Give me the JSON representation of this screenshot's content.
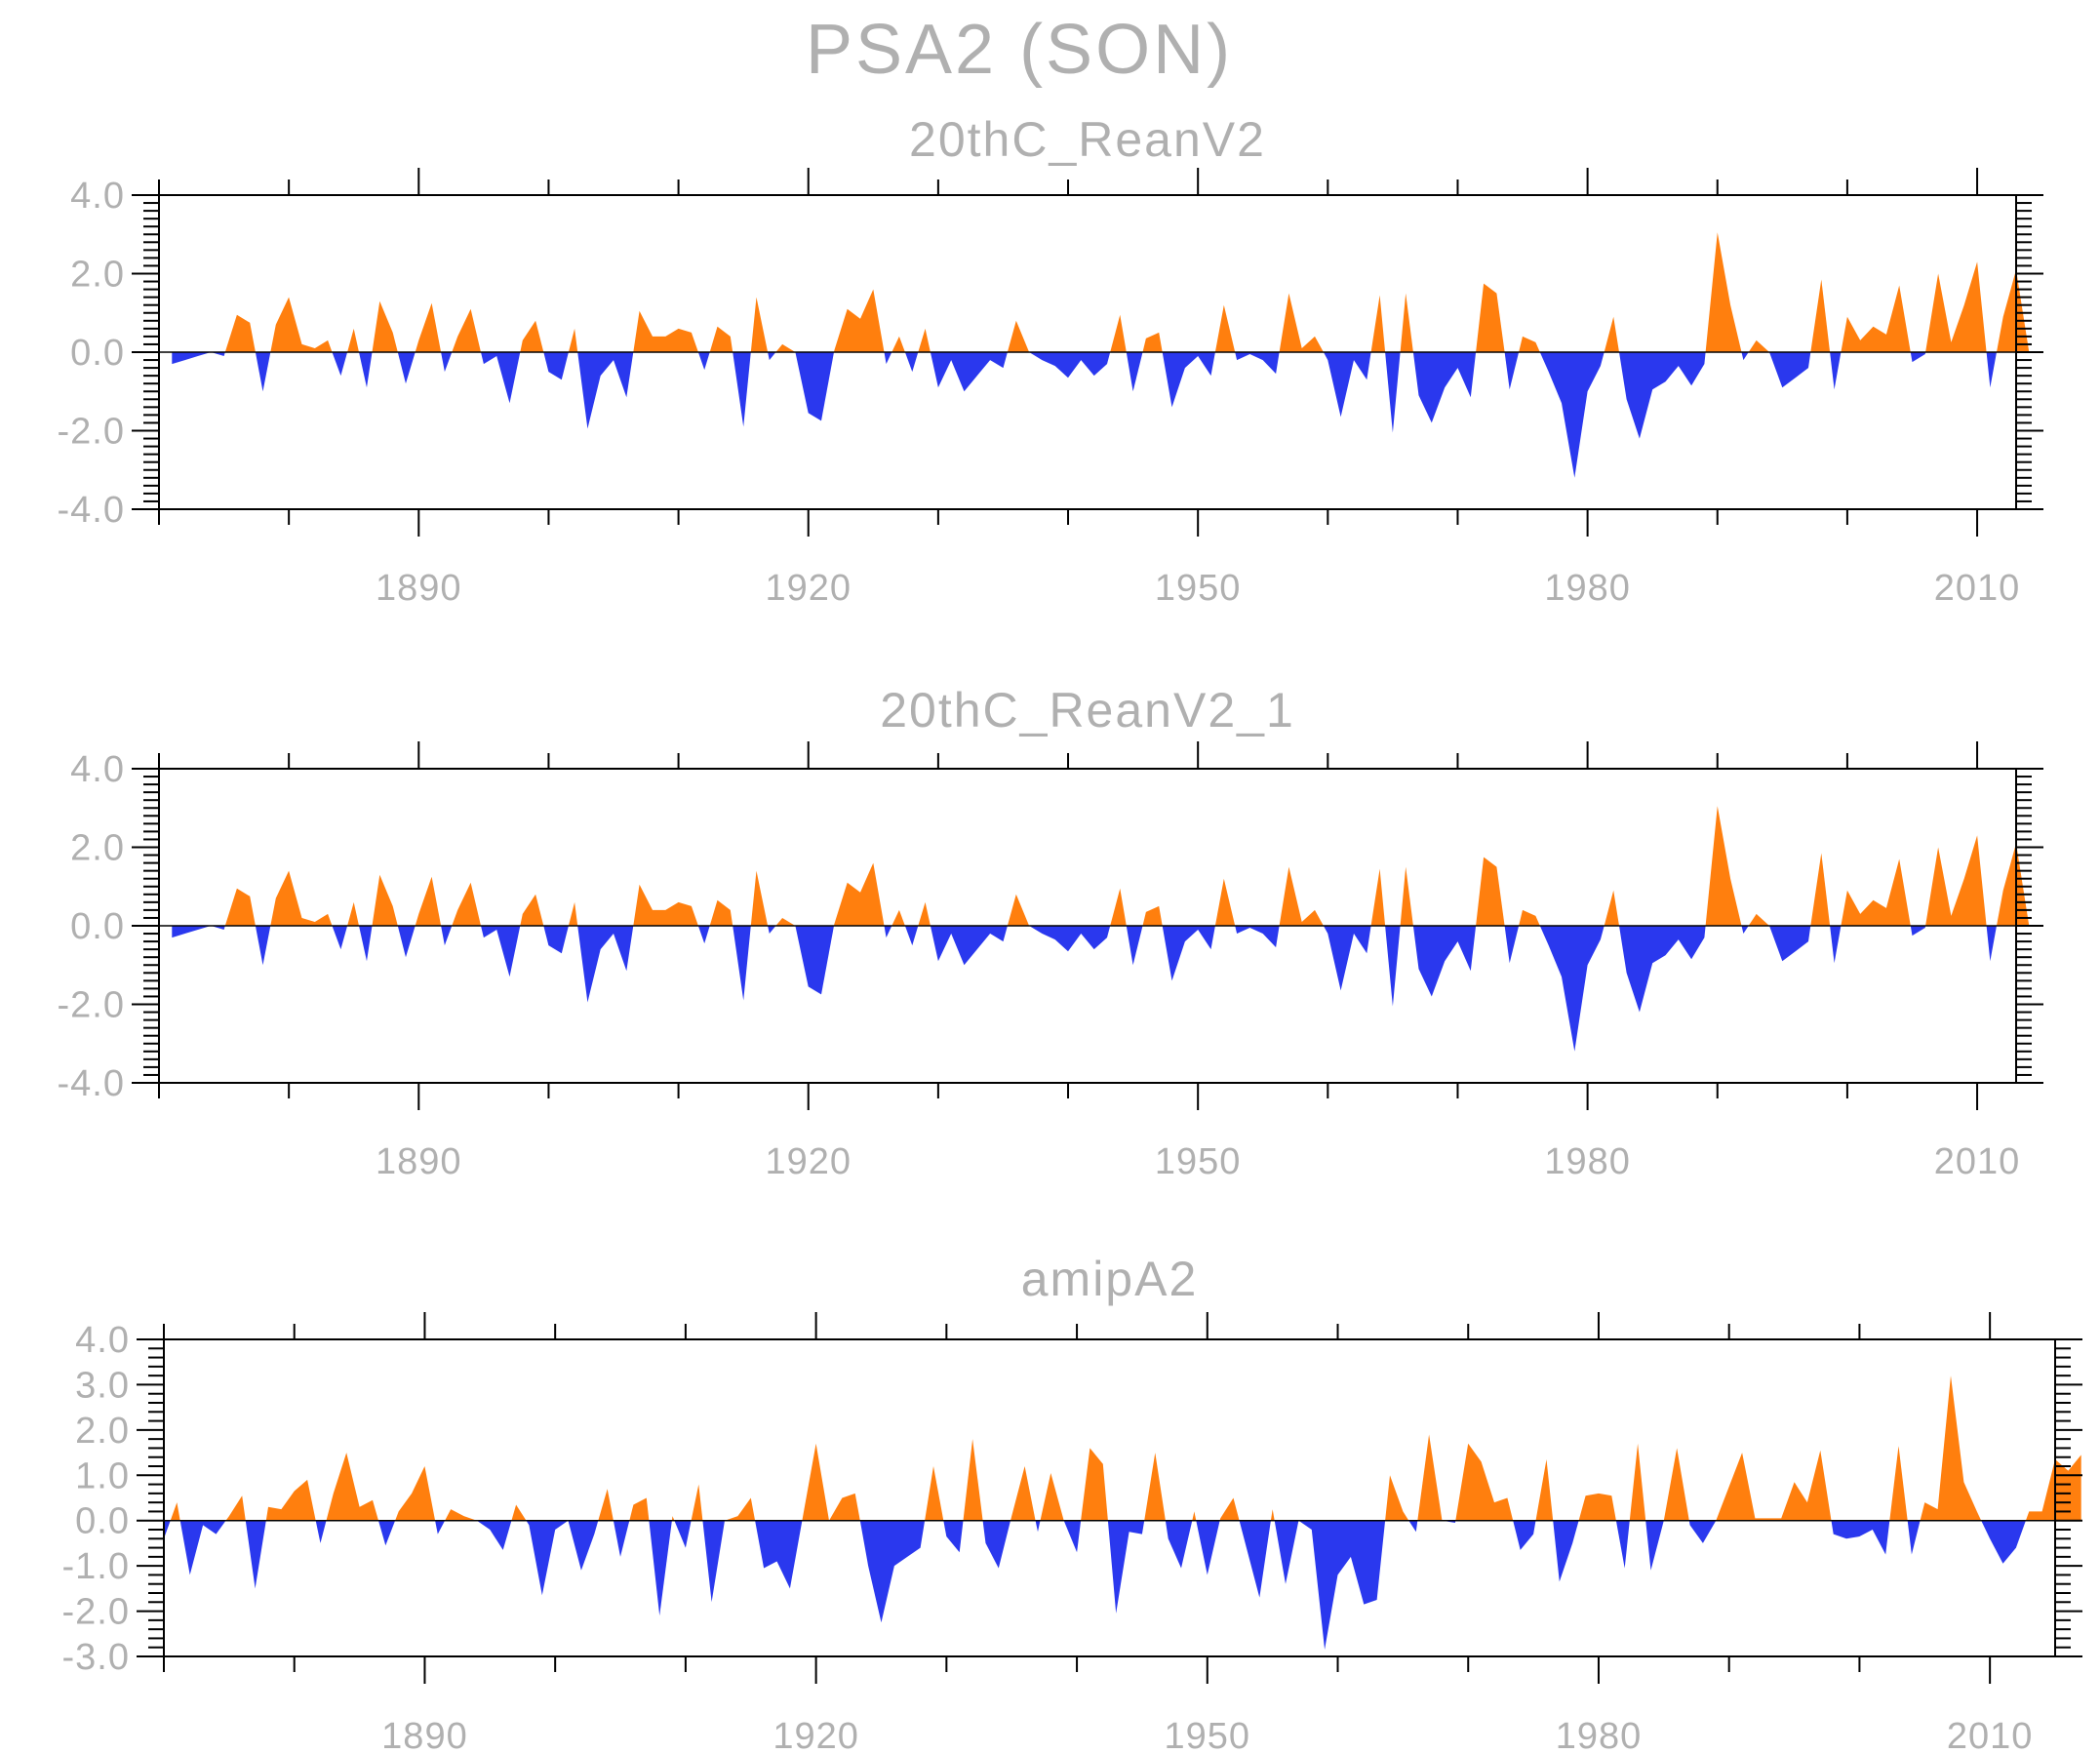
{
  "title": "PSA2 (SON)",
  "colors": {
    "positive": "#ff7f0e",
    "negative": "#2a38ee",
    "frame": "#000000",
    "text": "#b0b0b0"
  },
  "chart_data": [
    {
      "type": "area",
      "title": "20thC_ReanV2",
      "xlim": [
        1870,
        2013
      ],
      "ylim": [
        -4.0,
        4.0
      ],
      "x_ticks": [
        1890,
        1920,
        1950,
        1980,
        2010
      ],
      "x_tick_labels": [
        "1890",
        "1920",
        "1950",
        "1980",
        "2010"
      ],
      "y_ticks": [
        -4.0,
        -2.0,
        0.0,
        2.0,
        4.0
      ],
      "y_tick_labels": [
        "-4.0",
        "-2.0",
        "0.0",
        "2.0",
        "4.0"
      ],
      "x_start": 1871,
      "values": [
        -0.3,
        -0.2,
        -0.1,
        0.0,
        -0.1,
        0.95,
        0.75,
        -1.0,
        0.7,
        1.4,
        0.2,
        0.1,
        0.3,
        -0.6,
        0.6,
        -0.9,
        1.3,
        0.5,
        -0.8,
        0.3,
        1.25,
        -0.5,
        0.4,
        1.1,
        -0.3,
        -0.1,
        -1.3,
        0.3,
        0.8,
        -0.5,
        -0.7,
        0.6,
        -1.95,
        -0.6,
        -0.2,
        -1.15,
        1.05,
        0.4,
        0.4,
        0.6,
        0.5,
        -0.45,
        0.65,
        0.4,
        -1.9,
        1.4,
        -0.2,
        0.2,
        0.0,
        -1.55,
        -1.75,
        0.05,
        1.1,
        0.85,
        1.6,
        -0.3,
        0.4,
        -0.5,
        0.6,
        -0.9,
        -0.2,
        -1.0,
        -0.6,
        -0.2,
        -0.4,
        0.8,
        0.0,
        -0.2,
        -0.35,
        -0.65,
        -0.2,
        -0.6,
        -0.3,
        0.95,
        -1.0,
        0.35,
        0.5,
        -1.4,
        -0.4,
        -0.1,
        -0.6,
        1.2,
        -0.2,
        -0.05,
        -0.2,
        -0.55,
        1.5,
        0.1,
        0.4,
        -0.2,
        -1.65,
        -0.2,
        -0.7,
        1.45,
        -2.05,
        1.5,
        -1.1,
        -1.8,
        -0.9,
        -0.4,
        -1.15,
        1.75,
        1.5,
        -0.95,
        0.4,
        0.25,
        -0.5,
        -1.3,
        -3.2,
        -1.0,
        -0.35,
        0.9,
        -1.2,
        -2.2,
        -0.95,
        -0.75,
        -0.35,
        -0.85,
        -0.3,
        3.05,
        1.2,
        -0.2,
        0.3,
        0.0,
        -0.9,
        -0.65,
        -0.4,
        1.85,
        -0.95,
        0.9,
        0.3,
        0.65,
        0.45,
        1.7,
        -0.25,
        -0.05,
        2.0,
        0.25,
        1.2,
        2.3,
        -0.9,
        0.9,
        2.1,
        0.0
      ]
    },
    {
      "type": "area",
      "title": "20thC_ReanV2_1",
      "xlim": [
        1870,
        2013
      ],
      "ylim": [
        -4.0,
        4.0
      ],
      "x_ticks": [
        1890,
        1920,
        1950,
        1980,
        2010
      ],
      "x_tick_labels": [
        "1890",
        "1920",
        "1950",
        "1980",
        "2010"
      ],
      "y_ticks": [
        -4.0,
        -2.0,
        0.0,
        2.0,
        4.0
      ],
      "y_tick_labels": [
        "-4.0",
        "-2.0",
        "0.0",
        "2.0",
        "4.0"
      ],
      "x_start": 1871,
      "values": [
        -0.3,
        -0.2,
        -0.1,
        0.0,
        -0.1,
        0.95,
        0.75,
        -1.0,
        0.7,
        1.4,
        0.2,
        0.1,
        0.3,
        -0.6,
        0.6,
        -0.9,
        1.3,
        0.5,
        -0.8,
        0.3,
        1.25,
        -0.5,
        0.4,
        1.1,
        -0.3,
        -0.1,
        -1.3,
        0.3,
        0.8,
        -0.5,
        -0.7,
        0.6,
        -1.95,
        -0.6,
        -0.2,
        -1.15,
        1.05,
        0.4,
        0.4,
        0.6,
        0.5,
        -0.45,
        0.65,
        0.4,
        -1.9,
        1.4,
        -0.2,
        0.2,
        0.0,
        -1.55,
        -1.75,
        0.05,
        1.1,
        0.85,
        1.6,
        -0.3,
        0.4,
        -0.5,
        0.6,
        -0.9,
        -0.2,
        -1.0,
        -0.6,
        -0.2,
        -0.4,
        0.8,
        0.0,
        -0.2,
        -0.35,
        -0.65,
        -0.2,
        -0.6,
        -0.3,
        0.95,
        -1.0,
        0.35,
        0.5,
        -1.4,
        -0.4,
        -0.1,
        -0.6,
        1.2,
        -0.2,
        -0.05,
        -0.2,
        -0.55,
        1.5,
        0.1,
        0.4,
        -0.2,
        -1.65,
        -0.2,
        -0.7,
        1.45,
        -2.05,
        1.5,
        -1.1,
        -1.8,
        -0.9,
        -0.4,
        -1.15,
        1.75,
        1.5,
        -0.95,
        0.4,
        0.25,
        -0.5,
        -1.3,
        -3.2,
        -1.0,
        -0.35,
        0.9,
        -1.2,
        -2.2,
        -0.95,
        -0.75,
        -0.35,
        -0.85,
        -0.3,
        3.05,
        1.2,
        -0.2,
        0.3,
        0.0,
        -0.9,
        -0.65,
        -0.4,
        1.85,
        -0.95,
        0.9,
        0.3,
        0.65,
        0.45,
        1.7,
        -0.25,
        -0.05,
        2.0,
        0.25,
        1.2,
        2.3,
        -0.9,
        0.9,
        2.1,
        0.0
      ]
    },
    {
      "type": "area",
      "title": "amipA2",
      "xlim": [
        1870,
        2015
      ],
      "ylim": [
        -3.0,
        4.0
      ],
      "x_ticks": [
        1890,
        1920,
        1950,
        1980,
        2010
      ],
      "x_tick_labels": [
        "1890",
        "1920",
        "1950",
        "1980",
        "2010"
      ],
      "y_ticks": [
        -3.0,
        -2.0,
        -1.0,
        0.0,
        1.0,
        2.0,
        3.0,
        4.0
      ],
      "y_tick_labels": [
        "-3.0",
        "-2.0",
        "-1.0",
        "0.0",
        "1.0",
        "2.0",
        "3.0",
        "4.0"
      ],
      "x_start": 1870,
      "values": [
        -0.4,
        0.4,
        -1.2,
        -0.1,
        -0.3,
        0.1,
        0.55,
        -1.5,
        0.3,
        0.25,
        0.65,
        0.9,
        -0.5,
        0.6,
        1.5,
        0.3,
        0.45,
        -0.55,
        0.2,
        0.6,
        1.2,
        -0.3,
        0.25,
        0.1,
        0.0,
        -0.2,
        -0.65,
        0.35,
        -0.1,
        -1.65,
        -0.2,
        0.0,
        -1.1,
        -0.3,
        0.7,
        -0.8,
        0.35,
        0.5,
        -2.1,
        0.1,
        -0.6,
        0.8,
        -1.8,
        0.0,
        0.1,
        0.5,
        -1.05,
        -0.9,
        -1.5,
        0.1,
        1.7,
        0.0,
        0.5,
        0.6,
        -1.0,
        -2.25,
        -1.0,
        -0.8,
        -0.6,
        1.2,
        -0.35,
        -0.7,
        1.8,
        -0.5,
        -1.05,
        0.1,
        1.2,
        -0.25,
        1.05,
        0.0,
        -0.7,
        1.6,
        1.25,
        -2.05,
        -0.25,
        -0.3,
        1.5,
        -0.4,
        -1.05,
        0.2,
        -1.2,
        0.05,
        0.5,
        -0.6,
        -1.7,
        0.25,
        -1.4,
        0.0,
        -0.2,
        -2.85,
        -1.2,
        -0.8,
        -1.85,
        -1.75,
        1.0,
        0.2,
        -0.25,
        1.9,
        0.0,
        -0.05,
        1.7,
        1.3,
        0.4,
        0.5,
        -0.65,
        -0.3,
        1.35,
        -1.35,
        -0.5,
        0.55,
        0.6,
        0.55,
        -1.05,
        1.7,
        -1.1,
        0.0,
        1.6,
        -0.1,
        -0.5,
        0.0,
        0.75,
        1.5,
        0.05,
        0.05,
        0.05,
        0.85,
        0.4,
        1.55,
        -0.3,
        -0.4,
        -0.35,
        -0.2,
        -0.75,
        1.65,
        -0.75,
        0.4,
        0.25,
        3.2,
        0.85,
        0.2,
        -0.4,
        -0.95,
        -0.6,
        0.2,
        0.2,
        1.35,
        1.1,
        1.45
      ]
    }
  ]
}
